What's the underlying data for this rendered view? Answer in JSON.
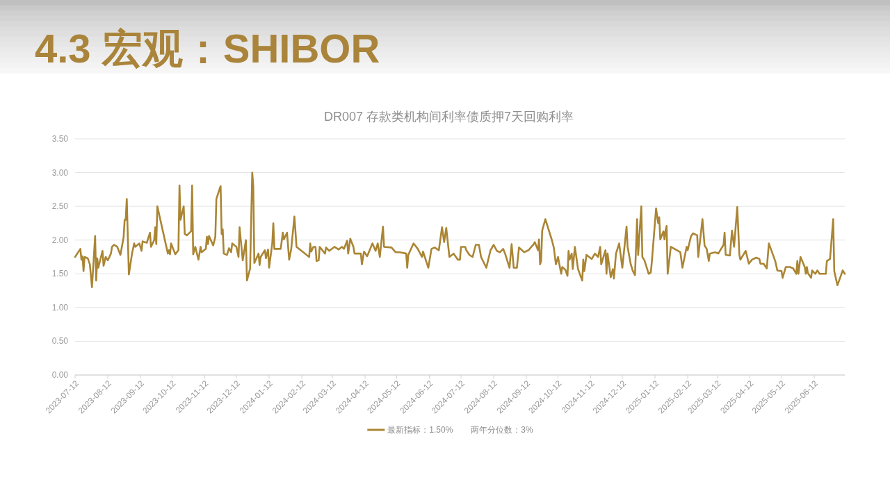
{
  "chart_data": {
    "type": "line",
    "title": "4.3 宏观：SHIBOR",
    "subtitle": "DR007 存款类机构间利率债质押7天回购利率",
    "x": [
      "2023-07-12",
      "2023-07-17",
      "2023-07-18",
      "2023-07-19",
      "2023-07-20",
      "2023-07-21",
      "2023-07-24",
      "2023-07-26",
      "2023-07-28",
      "2023-07-31",
      "2023-08-01",
      "2023-08-02",
      "2023-08-03",
      "2023-08-07",
      "2023-08-08",
      "2023-08-10",
      "2023-08-12",
      "2023-08-15",
      "2023-08-16",
      "2023-08-18",
      "2023-08-21",
      "2023-08-24",
      "2023-08-27",
      "2023-08-28",
      "2023-08-29",
      "2023-08-30",
      "2023-09-01",
      "2023-09-04",
      "2023-09-06",
      "2023-09-07",
      "2023-09-11",
      "2023-09-13",
      "2023-09-14",
      "2023-09-18",
      "2023-09-21",
      "2023-09-22",
      "2023-09-25",
      "2023-09-26",
      "2023-09-27",
      "2023-09-28",
      "2023-10-08",
      "2023-10-09",
      "2023-10-10",
      "2023-10-11",
      "2023-10-15",
      "2023-10-18",
      "2023-10-19",
      "2023-10-20",
      "2023-10-23",
      "2023-10-24",
      "2023-10-26",
      "2023-10-30",
      "2023-10-31",
      "2023-11-01",
      "2023-11-03",
      "2023-11-06",
      "2023-11-08",
      "2023-11-09",
      "2023-11-13",
      "2023-11-14",
      "2023-11-15",
      "2023-11-16",
      "2023-11-20",
      "2023-11-22",
      "2023-11-23",
      "2023-11-27",
      "2023-11-28",
      "2023-11-29",
      "2023-11-30",
      "2023-12-03",
      "2023-12-05",
      "2023-12-07",
      "2023-12-08",
      "2023-12-12",
      "2023-12-14",
      "2023-12-15",
      "2023-12-18",
      "2023-12-21",
      "2023-12-22",
      "2023-12-25",
      "2023-12-27",
      "2023-12-28",
      "2023-12-29",
      "2024-01-02",
      "2024-01-03",
      "2024-01-04",
      "2024-01-08",
      "2024-01-09",
      "2024-01-11",
      "2024-01-12",
      "2024-01-15",
      "2024-01-16",
      "2024-01-17",
      "2024-01-23",
      "2024-01-25",
      "2024-01-26",
      "2024-01-29",
      "2024-01-31",
      "2024-02-02",
      "2024-02-05",
      "2024-02-07",
      "2024-02-19",
      "2024-02-20",
      "2024-02-21",
      "2024-02-23",
      "2024-02-25",
      "2024-02-26",
      "2024-02-28",
      "2024-02-29",
      "2024-03-05",
      "2024-03-06",
      "2024-03-09",
      "2024-03-14",
      "2024-03-18",
      "2024-03-21",
      "2024-03-23",
      "2024-03-26",
      "2024-03-27",
      "2024-03-29",
      "2024-04-01",
      "2024-04-02",
      "2024-04-08",
      "2024-04-09",
      "2024-04-11",
      "2024-04-14",
      "2024-04-19",
      "2024-04-22",
      "2024-04-24",
      "2024-04-26",
      "2024-04-29",
      "2024-04-30",
      "2024-05-07",
      "2024-05-11",
      "2024-05-15",
      "2024-05-21",
      "2024-05-22",
      "2024-05-23",
      "2024-05-28",
      "2024-06-01",
      "2024-06-05",
      "2024-06-06",
      "2024-06-11",
      "2024-06-14",
      "2024-06-17",
      "2024-06-21",
      "2024-06-24",
      "2024-06-26",
      "2024-06-28",
      "2024-07-01",
      "2024-07-05",
      "2024-07-09",
      "2024-07-11",
      "2024-07-12",
      "2024-07-16",
      "2024-07-17",
      "2024-07-20",
      "2024-07-23",
      "2024-07-26",
      "2024-07-29",
      "2024-07-31",
      "2024-08-05",
      "2024-08-09",
      "2024-08-12",
      "2024-08-15",
      "2024-08-18",
      "2024-08-21",
      "2024-08-23",
      "2024-08-27",
      "2024-08-29",
      "2024-08-31",
      "2024-09-03",
      "2024-09-05",
      "2024-09-10",
      "2024-09-14",
      "2024-09-19",
      "2024-09-20",
      "2024-09-23",
      "2024-09-24",
      "2024-09-25",
      "2024-09-26",
      "2024-09-27",
      "2024-09-30",
      "2024-10-06",
      "2024-10-08",
      "2024-10-10",
      "2024-10-12",
      "2024-10-15",
      "2024-10-16",
      "2024-10-19",
      "2024-10-21",
      "2024-10-22",
      "2024-10-23",
      "2024-10-25",
      "2024-10-26",
      "2024-10-28",
      "2024-10-31",
      "2024-11-04",
      "2024-11-05",
      "2024-11-06",
      "2024-11-08",
      "2024-11-13",
      "2024-11-16",
      "2024-11-19",
      "2024-11-21",
      "2024-11-22",
      "2024-11-26",
      "2024-11-27",
      "2024-11-28",
      "2024-12-01",
      "2024-12-03",
      "2024-12-04",
      "2024-12-06",
      "2024-12-09",
      "2024-12-12",
      "2024-12-16",
      "2024-12-17",
      "2024-12-20",
      "2024-12-22",
      "2024-12-24",
      "2024-12-26",
      "2024-12-27",
      "2024-12-30",
      "2024-12-31",
      "2025-01-02",
      "2025-01-06",
      "2025-01-08",
      "2025-01-09",
      "2025-01-13",
      "2025-01-15",
      "2025-01-16",
      "2025-01-17",
      "2025-01-20",
      "2025-01-21",
      "2025-01-22",
      "2025-01-23",
      "2025-01-24",
      "2025-01-27",
      "2025-02-05",
      "2025-02-07",
      "2025-02-11",
      "2025-02-12",
      "2025-02-15",
      "2025-02-17",
      "2025-02-21",
      "2025-02-22",
      "2025-02-26",
      "2025-02-28",
      "2025-03-02",
      "2025-03-04",
      "2025-03-05",
      "2025-03-10",
      "2025-03-13",
      "2025-03-18",
      "2025-03-19",
      "2025-03-20",
      "2025-03-24",
      "2025-03-26",
      "2025-03-28",
      "2025-03-31",
      "2025-04-02",
      "2025-04-03",
      "2025-04-08",
      "2025-04-11",
      "2025-04-14",
      "2025-04-18",
      "2025-04-21",
      "2025-04-22",
      "2025-04-25",
      "2025-04-28",
      "2025-04-30",
      "2025-05-06",
      "2025-05-08",
      "2025-05-12",
      "2025-05-13",
      "2025-05-16",
      "2025-05-20",
      "2025-05-23",
      "2025-05-26",
      "2025-05-27",
      "2025-05-28",
      "2025-05-30",
      "2025-06-03",
      "2025-06-04",
      "2025-06-05",
      "2025-06-06",
      "2025-06-09",
      "2025-06-10",
      "2025-06-13",
      "2025-06-15",
      "2025-06-17",
      "2025-06-23",
      "2025-06-24",
      "2025-06-27",
      "2025-06-30",
      "2025-07-01",
      "2025-07-03",
      "2025-07-04",
      "2025-07-07",
      "2025-07-09",
      "2025-07-11"
    ],
    "series": [
      {
        "name": "最新指标：1.50%",
        "color": "#aa8534",
        "values": [
          1.75,
          1.87,
          1.71,
          1.76,
          1.54,
          1.75,
          1.73,
          1.64,
          1.3,
          2.06,
          1.4,
          1.73,
          1.59,
          1.84,
          1.62,
          1.75,
          1.7,
          1.8,
          1.9,
          1.93,
          1.9,
          1.78,
          2.04,
          2.3,
          2.3,
          2.61,
          1.49,
          1.8,
          1.95,
          1.9,
          1.95,
          1.84,
          1.98,
          1.96,
          2.11,
          1.9,
          2.0,
          2.19,
          1.94,
          2.5,
          1.8,
          1.85,
          1.79,
          1.95,
          1.79,
          1.85,
          2.81,
          2.3,
          2.5,
          2.09,
          2.07,
          2.13,
          2.81,
          1.79,
          1.9,
          1.71,
          1.9,
          1.82,
          1.87,
          2.05,
          1.94,
          2.06,
          1.92,
          2.05,
          2.61,
          2.8,
          2.09,
          2.16,
          1.8,
          1.78,
          1.88,
          1.82,
          1.95,
          1.9,
          1.75,
          2.19,
          1.7,
          2.0,
          1.4,
          1.58,
          3.0,
          2.8,
          1.66,
          1.8,
          1.63,
          1.75,
          1.85,
          1.73,
          1.86,
          1.59,
          1.95,
          2.25,
          1.87,
          1.87,
          2.11,
          2.01,
          2.11,
          1.71,
          1.87,
          2.35,
          1.9,
          1.75,
          1.95,
          1.83,
          1.9,
          1.9,
          1.69,
          1.7,
          1.9,
          1.8,
          1.89,
          1.84,
          1.9,
          1.86,
          1.9,
          1.87,
          1.99,
          1.8,
          2.02,
          1.9,
          1.8,
          1.8,
          1.64,
          1.83,
          1.76,
          1.95,
          1.84,
          1.95,
          1.75,
          2.2,
          1.9,
          1.89,
          1.82,
          1.82,
          1.8,
          1.59,
          1.78,
          1.95,
          1.87,
          1.75,
          1.83,
          1.59,
          1.87,
          1.89,
          1.85,
          2.19,
          1.97,
          2.18,
          1.75,
          1.8,
          1.71,
          1.71,
          1.9,
          1.9,
          1.85,
          1.78,
          1.75,
          1.93,
          1.93,
          1.75,
          1.59,
          1.85,
          1.93,
          1.84,
          1.82,
          1.87,
          1.79,
          1.59,
          1.94,
          1.59,
          1.59,
          1.89,
          1.82,
          1.85,
          1.94,
          1.97,
          1.85,
          2.01,
          1.64,
          1.69,
          2.14,
          2.31,
          2.01,
          1.89,
          1.64,
          1.75,
          1.5,
          1.6,
          1.56,
          1.47,
          1.84,
          1.71,
          1.8,
          1.57,
          1.9,
          1.57,
          1.4,
          1.71,
          1.54,
          1.78,
          1.72,
          1.8,
          1.75,
          1.9,
          1.64,
          1.85,
          1.5,
          1.8,
          1.45,
          1.57,
          1.43,
          1.8,
          1.95,
          1.59,
          2.2,
          1.9,
          1.64,
          1.54,
          1.48,
          2.31,
          1.78,
          2.5,
          1.75,
          1.7,
          1.5,
          1.52,
          1.68,
          2.47,
          2.25,
          2.34,
          2.01,
          2.13,
          2.01,
          2.14,
          2.21,
          1.5,
          1.9,
          1.82,
          1.59,
          1.9,
          1.85,
          2.05,
          2.1,
          2.07,
          1.75,
          2.31,
          1.92,
          1.87,
          1.69,
          1.8,
          1.82,
          1.8,
          1.93,
          2.11,
          1.78,
          1.77,
          2.14,
          1.9,
          2.49,
          1.78,
          1.71,
          1.84,
          1.65,
          1.71,
          1.74,
          1.72,
          1.65,
          1.65,
          1.58,
          1.95,
          1.69,
          1.55,
          1.54,
          1.44,
          1.6,
          1.6,
          1.58,
          1.5,
          1.69,
          1.5,
          1.75,
          1.6,
          1.5,
          1.6,
          1.51,
          1.44,
          1.55,
          1.5,
          1.55,
          1.5,
          1.5,
          1.69,
          1.72,
          2.31,
          1.54,
          1.4,
          1.33,
          1.46,
          1.55,
          1.5
        ]
      }
    ],
    "xlim": [
      "2023-07-12",
      "2025-07-11"
    ],
    "xticks": [
      "2023-07-12",
      "2023-08-12",
      "2023-09-12",
      "2023-10-12",
      "2023-11-12",
      "2023-12-12",
      "2024-01-12",
      "2024-02-12",
      "2024-03-12",
      "2024-04-12",
      "2024-05-12",
      "2024-06-12",
      "2024-07-12",
      "2024-08-12",
      "2024-09-12",
      "2024-10-12",
      "2024-11-12",
      "2024-12-12",
      "2025-01-12",
      "2025-02-12",
      "2025-03-12",
      "2025-04-12",
      "2025-05-12",
      "2025-06-12"
    ],
    "ylim": [
      0,
      3.5
    ],
    "yticks": [
      {
        "value": 0,
        "label": "0.00"
      },
      {
        "value": 0.5,
        "label": "0.50"
      },
      {
        "value": 1,
        "label": "1.00"
      },
      {
        "value": 1.5,
        "label": "1.50"
      },
      {
        "value": 2,
        "label": "2.00"
      },
      {
        "value": 2.5,
        "label": "2.50"
      },
      {
        "value": 3,
        "label": "3.00"
      },
      {
        "value": 3.5,
        "label": "3.50"
      }
    ],
    "grid": "y",
    "legend": "bottom",
    "annotations": [
      "两年分位数：3%"
    ]
  }
}
